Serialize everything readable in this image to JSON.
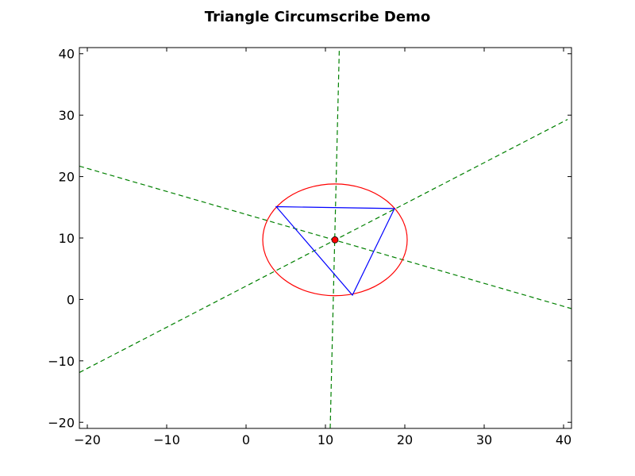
{
  "chart_data": {
    "type": "geometry",
    "title": "Triangle Circumscribe Demo",
    "xlabel": "",
    "ylabel": "",
    "xlim": [
      -21,
      41
    ],
    "ylim": [
      -21,
      41
    ],
    "xticks": [
      -20,
      -10,
      0,
      10,
      20,
      30,
      40
    ],
    "yticks": [
      -20,
      -10,
      0,
      10,
      20,
      30,
      40
    ],
    "grid": false,
    "triangle": {
      "color": "#0000ff",
      "vertices": [
        [
          3.8,
          15.1
        ],
        [
          18.7,
          14.8
        ],
        [
          13.4,
          0.7
        ]
      ]
    },
    "circumcircle": {
      "color": "#ff0000",
      "center": [
        11.2,
        9.7
      ],
      "radius": 9.1
    },
    "circumcenter": {
      "color": "#ff0000",
      "point": [
        11.2,
        9.7
      ]
    },
    "bisectors": {
      "color": "#008000",
      "style": "dashed",
      "lines": [
        {
          "p1": [
            10.6,
            -21
          ],
          "p2": [
            11.75,
            41
          ]
        },
        {
          "p1": [
            -21,
            21.7
          ],
          "p2": [
            41,
            -1.5
          ]
        },
        {
          "p1": [
            -21,
            -11.9
          ],
          "p2": [
            40.5,
            29.3
          ]
        }
      ]
    }
  }
}
